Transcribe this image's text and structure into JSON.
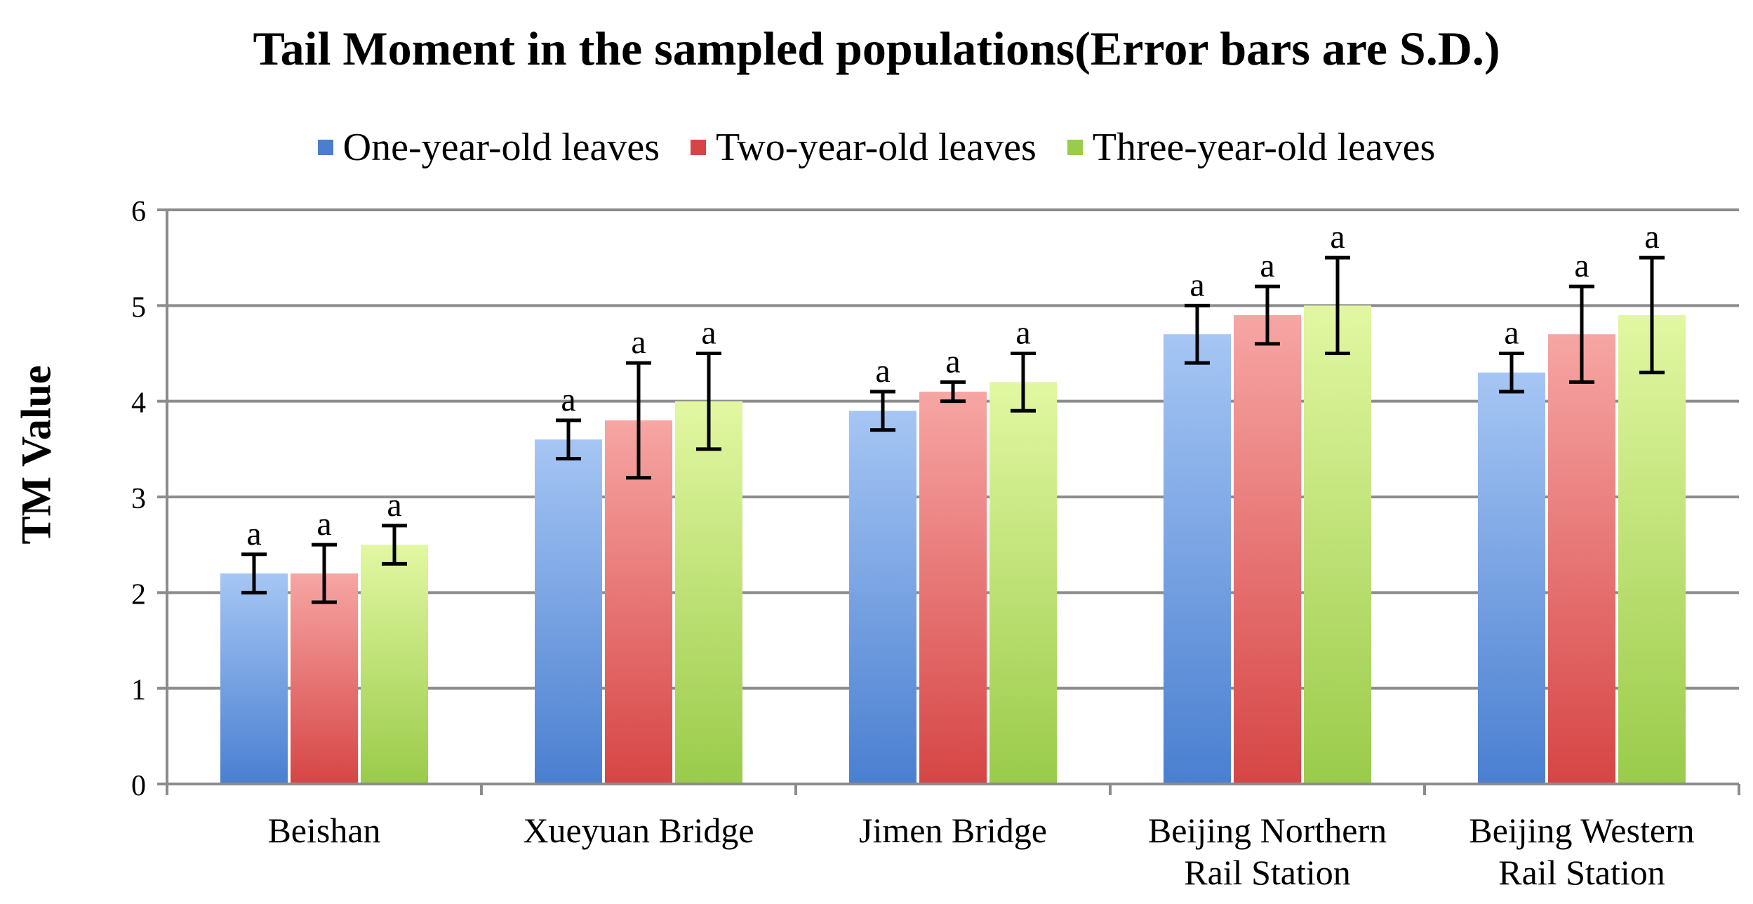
{
  "chart_data": {
    "type": "bar",
    "title": "Tail Moment in the sampled populations(Error bars are S.D.)",
    "xlabel": "",
    "ylabel": "TM Value",
    "ylim": [
      0,
      6
    ],
    "yticks": [
      0,
      1,
      2,
      3,
      4,
      5,
      6
    ],
    "grid": true,
    "legend_position": "top",
    "categories": [
      [
        "Beishan"
      ],
      [
        "Xueyuan Bridge"
      ],
      [
        "Jimen Bridge"
      ],
      [
        "Beijing Northern",
        "Rail Station"
      ],
      [
        "Beijing Western",
        "Rail Station"
      ]
    ],
    "series": [
      {
        "name": "One-year-old leaves",
        "color": "#4a7fd0",
        "color_light": "#a6c6f4",
        "values": [
          2.2,
          3.6,
          3.9,
          4.7,
          4.3
        ],
        "error": [
          0.2,
          0.2,
          0.2,
          0.3,
          0.2
        ],
        "labels": [
          "a",
          "a",
          "a",
          "a",
          "a"
        ]
      },
      {
        "name": "Two-year-old leaves",
        "color": "#d64545",
        "color_light": "#f6a6a4",
        "values": [
          2.2,
          3.8,
          4.1,
          4.9,
          4.7
        ],
        "error": [
          0.3,
          0.6,
          0.1,
          0.3,
          0.5
        ],
        "labels": [
          "a",
          "a",
          "a",
          "a",
          "a"
        ]
      },
      {
        "name": "Three-year-old leaves",
        "color": "#9acb4a",
        "color_light": "#e2f7a2",
        "values": [
          2.5,
          4.0,
          4.2,
          5.0,
          4.9
        ],
        "error": [
          0.2,
          0.5,
          0.3,
          0.5,
          0.6
        ],
        "labels": [
          "a",
          "a",
          "a",
          "a",
          "a"
        ]
      }
    ]
  }
}
